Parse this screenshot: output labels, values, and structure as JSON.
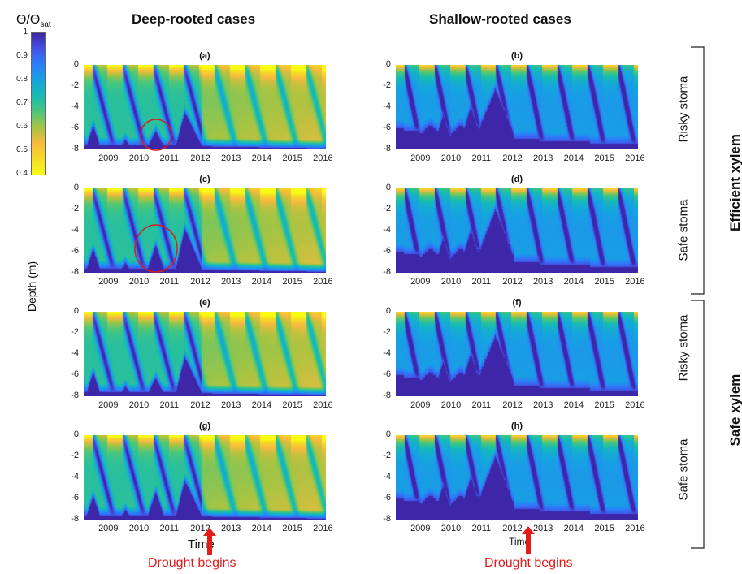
{
  "colorbar": {
    "title": "Θ/Θsat",
    "title_main": "Θ/Θ",
    "title_sub": "sat",
    "min": 0.4,
    "max": 1,
    "ticks": [
      "1",
      "0.9",
      "0.8",
      "0.7",
      "0.6",
      "0.5",
      "0.4"
    ],
    "colormap": [
      "#3e26a8",
      "#4353e6",
      "#2b7ffa",
      "#15a5e0",
      "#17bcb1",
      "#4cc779",
      "#a8c442",
      "#f8ba3d",
      "#f5db25",
      "#f9fb15"
    ]
  },
  "columns": [
    {
      "title": "Deep-rooted cases"
    },
    {
      "title": "Shallow-rooted cases"
    }
  ],
  "rows": [
    {
      "label": "Risky stoma"
    },
    {
      "label": "Safe stoma"
    },
    {
      "label": "Risky stoma"
    },
    {
      "label": "Safe stoma"
    }
  ],
  "groups": [
    {
      "label": "Efficient xylem"
    },
    {
      "label": "Safe xylem"
    }
  ],
  "ylabel": "Depth (m)",
  "xlabels": [
    "Time",
    "Time"
  ],
  "drought": {
    "label": "Drought begins",
    "year": 2012
  },
  "chart_data": [
    {
      "type": "heatmap",
      "panel": "(a)",
      "root": "deep",
      "stoma": "risky",
      "xylem": "efficient",
      "x_ticks": [
        "2009",
        "2010",
        "2011",
        "2012",
        "2013",
        "2014",
        "2015",
        "2016"
      ],
      "y_ticks": [
        "0",
        "-2",
        "-4",
        "-6",
        "-8"
      ],
      "ylim": [
        -8,
        0
      ],
      "value_range": [
        0.4,
        1
      ],
      "saturated_front_peak_depth": -4.5,
      "highlight_circle_year": 2010.5
    },
    {
      "type": "heatmap",
      "panel": "(b)",
      "root": "shallow",
      "stoma": "risky",
      "xylem": "efficient",
      "x_ticks": [
        "2009",
        "2010",
        "2011",
        "2012",
        "2013",
        "2014",
        "2015",
        "2016"
      ],
      "y_ticks": [
        "0",
        "-2",
        "-4",
        "-6",
        "-8"
      ],
      "ylim": [
        -8,
        0
      ],
      "value_range": [
        0.4,
        1
      ],
      "saturated_front_peak_depth": -2.3
    },
    {
      "type": "heatmap",
      "panel": "(c)",
      "root": "deep",
      "stoma": "safe",
      "xylem": "efficient",
      "x_ticks": [
        "2009",
        "2010",
        "2011",
        "2012",
        "2013",
        "2014",
        "2015",
        "2016"
      ],
      "y_ticks": [
        "0",
        "-2",
        "-4",
        "-6",
        "-8"
      ],
      "ylim": [
        -8,
        0
      ],
      "value_range": [
        0.4,
        1
      ],
      "saturated_front_peak_depth": -3.8,
      "highlight_circle_year": 2010.5
    },
    {
      "type": "heatmap",
      "panel": "(d)",
      "root": "shallow",
      "stoma": "safe",
      "xylem": "efficient",
      "x_ticks": [
        "2009",
        "2010",
        "2011",
        "2012",
        "2013",
        "2014",
        "2015",
        "2016"
      ],
      "y_ticks": [
        "0",
        "-2",
        "-4",
        "-6",
        "-8"
      ],
      "ylim": [
        -8,
        0
      ],
      "value_range": [
        0.4,
        1
      ],
      "saturated_front_peak_depth": -2.0
    },
    {
      "type": "heatmap",
      "panel": "(e)",
      "root": "deep",
      "stoma": "risky",
      "xylem": "safe",
      "x_ticks": [
        "2009",
        "2010",
        "2011",
        "2012",
        "2013",
        "2014",
        "2015",
        "2016"
      ],
      "y_ticks": [
        "0",
        "-2",
        "-4",
        "-6",
        "-8"
      ],
      "ylim": [
        -8,
        0
      ],
      "value_range": [
        0.4,
        1
      ],
      "saturated_front_peak_depth": -4.3
    },
    {
      "type": "heatmap",
      "panel": "(f)",
      "root": "shallow",
      "stoma": "risky",
      "xylem": "safe",
      "x_ticks": [
        "2009",
        "2010",
        "2011",
        "2012",
        "2013",
        "2014",
        "2015",
        "2016"
      ],
      "y_ticks": [
        "0",
        "-2",
        "-4",
        "-6",
        "-8"
      ],
      "ylim": [
        -8,
        0
      ],
      "value_range": [
        0.4,
        1
      ],
      "saturated_front_peak_depth": -2.3
    },
    {
      "type": "heatmap",
      "panel": "(g)",
      "root": "deep",
      "stoma": "safe",
      "xylem": "safe",
      "x_ticks": [
        "2009",
        "2010",
        "2011",
        "2012",
        "2013",
        "2014",
        "2015",
        "2016"
      ],
      "y_ticks": [
        "0",
        "-2",
        "-4",
        "-6",
        "-8"
      ],
      "ylim": [
        -8,
        0
      ],
      "value_range": [
        0.4,
        1
      ],
      "saturated_front_peak_depth": -4.3
    },
    {
      "type": "heatmap",
      "panel": "(h)",
      "root": "shallow",
      "stoma": "safe",
      "xylem": "safe",
      "x_ticks": [
        "2009",
        "2010",
        "2011",
        "2012",
        "2013",
        "2014",
        "2015",
        "2016"
      ],
      "y_ticks": [
        "0",
        "-2",
        "-4",
        "-6",
        "-8"
      ],
      "ylim": [
        -8,
        0
      ],
      "value_range": [
        0.4,
        1
      ],
      "saturated_front_peak_depth": -2.0
    }
  ]
}
